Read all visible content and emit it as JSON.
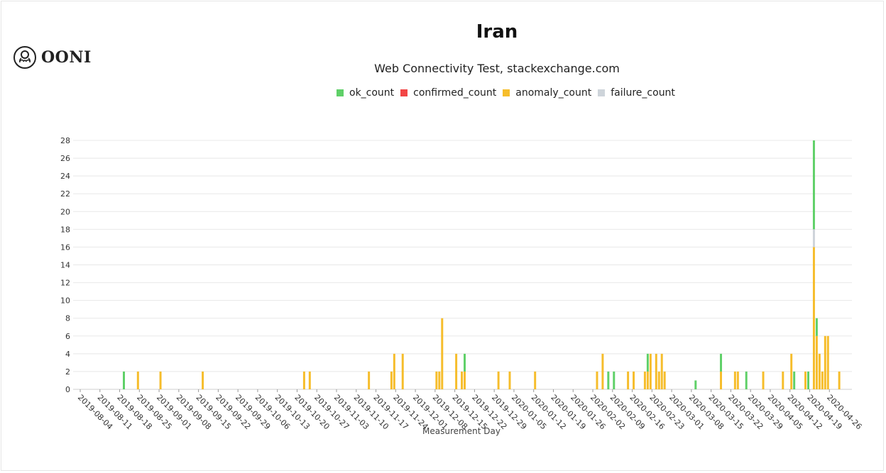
{
  "logo": {
    "text": "OONI",
    "icon": "octopus-icon"
  },
  "chart_data": {
    "type": "bar",
    "title": "Iran",
    "subtitle": "Web Connectivity Test, stackexchange.com",
    "xlabel": "Measurement Day",
    "ylabel": "",
    "ylim": [
      0,
      28
    ],
    "yticks": [
      0,
      2,
      4,
      6,
      8,
      10,
      12,
      14,
      16,
      18,
      20,
      22,
      24,
      26,
      28
    ],
    "xticks": [
      "2019-08-04",
      "2019-08-11",
      "2019-08-18",
      "2019-08-25",
      "2019-09-01",
      "2019-09-08",
      "2019-09-15",
      "2019-09-22",
      "2019-09-29",
      "2019-10-06",
      "2019-10-13",
      "2019-10-20",
      "2019-10-27",
      "2019-11-03",
      "2019-11-10",
      "2019-11-17",
      "2019-11-24",
      "2019-12-01",
      "2019-12-08",
      "2019-12-15",
      "2019-12-22",
      "2019-12-29",
      "2020-01-05",
      "2020-01-12",
      "2020-01-19",
      "2020-01-26",
      "2020-02-02",
      "2020-02-09",
      "2020-02-16",
      "2020-02-23",
      "2020-03-01",
      "2020-03-08",
      "2020-03-15",
      "2020-03-22",
      "2020-03-29",
      "2020-04-05",
      "2020-04-12",
      "2020-04-19",
      "2020-04-26"
    ],
    "start_date": "2019-08-04",
    "num_days": 274,
    "legend": [
      {
        "name": "ok_count",
        "color": "#5fd068"
      },
      {
        "name": "confirmed_count",
        "color": "#f24545"
      },
      {
        "name": "anomaly_count",
        "color": "#f6bd2b"
      },
      {
        "name": "failure_count",
        "color": "#ced4da"
      }
    ],
    "data": [
      {
        "date": "2019-08-19",
        "ok_count": 2,
        "confirmed_count": 0,
        "anomaly_count": 0,
        "failure_count": 0
      },
      {
        "date": "2019-08-24",
        "ok_count": 0,
        "confirmed_count": 0,
        "anomaly_count": 2,
        "failure_count": 0
      },
      {
        "date": "2019-09-01",
        "ok_count": 0,
        "confirmed_count": 0,
        "anomaly_count": 2,
        "failure_count": 0
      },
      {
        "date": "2019-09-16",
        "ok_count": 0,
        "confirmed_count": 0,
        "anomaly_count": 2,
        "failure_count": 0
      },
      {
        "date": "2019-10-22",
        "ok_count": 0,
        "confirmed_count": 0,
        "anomaly_count": 2,
        "failure_count": 0
      },
      {
        "date": "2019-10-24",
        "ok_count": 0,
        "confirmed_count": 0,
        "anomaly_count": 2,
        "failure_count": 0
      },
      {
        "date": "2019-11-14",
        "ok_count": 0,
        "confirmed_count": 0,
        "anomaly_count": 2,
        "failure_count": 0
      },
      {
        "date": "2019-11-22",
        "ok_count": 0,
        "confirmed_count": 0,
        "anomaly_count": 2,
        "failure_count": 0
      },
      {
        "date": "2019-11-23",
        "ok_count": 0,
        "confirmed_count": 0,
        "anomaly_count": 4,
        "failure_count": 0
      },
      {
        "date": "2019-11-26",
        "ok_count": 0,
        "confirmed_count": 0,
        "anomaly_count": 4,
        "failure_count": 0
      },
      {
        "date": "2019-12-08",
        "ok_count": 0,
        "confirmed_count": 0,
        "anomaly_count": 2,
        "failure_count": 0
      },
      {
        "date": "2019-12-09",
        "ok_count": 0,
        "confirmed_count": 0,
        "anomaly_count": 2,
        "failure_count": 0
      },
      {
        "date": "2019-12-10",
        "ok_count": 0,
        "confirmed_count": 0,
        "anomaly_count": 8,
        "failure_count": 0
      },
      {
        "date": "2019-12-15",
        "ok_count": 0,
        "confirmed_count": 0,
        "anomaly_count": 4,
        "failure_count": 0
      },
      {
        "date": "2019-12-17",
        "ok_count": 0,
        "confirmed_count": 0,
        "anomaly_count": 2,
        "failure_count": 0
      },
      {
        "date": "2019-12-18",
        "ok_count": 2,
        "confirmed_count": 0,
        "anomaly_count": 2,
        "failure_count": 0
      },
      {
        "date": "2019-12-30",
        "ok_count": 0,
        "confirmed_count": 0,
        "anomaly_count": 2,
        "failure_count": 0
      },
      {
        "date": "2020-01-03",
        "ok_count": 0,
        "confirmed_count": 0,
        "anomaly_count": 2,
        "failure_count": 0
      },
      {
        "date": "2020-01-12",
        "ok_count": 0,
        "confirmed_count": 0,
        "anomaly_count": 2,
        "failure_count": 0
      },
      {
        "date": "2020-02-03",
        "ok_count": 0,
        "confirmed_count": 0,
        "anomaly_count": 2,
        "failure_count": 0
      },
      {
        "date": "2020-02-05",
        "ok_count": 0,
        "confirmed_count": 0,
        "anomaly_count": 4,
        "failure_count": 0
      },
      {
        "date": "2020-02-07",
        "ok_count": 2,
        "confirmed_count": 0,
        "anomaly_count": 0,
        "failure_count": 0
      },
      {
        "date": "2020-02-09",
        "ok_count": 2,
        "confirmed_count": 0,
        "anomaly_count": 0,
        "failure_count": 0
      },
      {
        "date": "2020-02-14",
        "ok_count": 0,
        "confirmed_count": 0,
        "anomaly_count": 2,
        "failure_count": 0
      },
      {
        "date": "2020-02-16",
        "ok_count": 0,
        "confirmed_count": 0,
        "anomaly_count": 2,
        "failure_count": 0
      },
      {
        "date": "2020-02-20",
        "ok_count": 0,
        "confirmed_count": 0,
        "anomaly_count": 2,
        "failure_count": 0
      },
      {
        "date": "2020-02-21",
        "ok_count": 2,
        "confirmed_count": 0,
        "anomaly_count": 2,
        "failure_count": 0
      },
      {
        "date": "2020-02-22",
        "ok_count": 0,
        "confirmed_count": 0,
        "anomaly_count": 4,
        "failure_count": 0
      },
      {
        "date": "2020-02-24",
        "ok_count": 0,
        "confirmed_count": 0,
        "anomaly_count": 4,
        "failure_count": 0
      },
      {
        "date": "2020-02-25",
        "ok_count": 0,
        "confirmed_count": 0,
        "anomaly_count": 2,
        "failure_count": 0
      },
      {
        "date": "2020-02-26",
        "ok_count": 0,
        "confirmed_count": 0,
        "anomaly_count": 4,
        "failure_count": 0
      },
      {
        "date": "2020-02-27",
        "ok_count": 0,
        "confirmed_count": 0,
        "anomaly_count": 2,
        "failure_count": 0
      },
      {
        "date": "2020-03-09",
        "ok_count": 1,
        "confirmed_count": 0,
        "anomaly_count": 0,
        "failure_count": 0
      },
      {
        "date": "2020-03-18",
        "ok_count": 2,
        "confirmed_count": 0,
        "anomaly_count": 2,
        "failure_count": 0
      },
      {
        "date": "2020-03-23",
        "ok_count": 0,
        "confirmed_count": 0,
        "anomaly_count": 2,
        "failure_count": 0
      },
      {
        "date": "2020-03-24",
        "ok_count": 0,
        "confirmed_count": 0,
        "anomaly_count": 2,
        "failure_count": 0
      },
      {
        "date": "2020-03-27",
        "ok_count": 2,
        "confirmed_count": 0,
        "anomaly_count": 0,
        "failure_count": 0
      },
      {
        "date": "2020-04-02",
        "ok_count": 0,
        "confirmed_count": 0,
        "anomaly_count": 2,
        "failure_count": 0
      },
      {
        "date": "2020-04-09",
        "ok_count": 0,
        "confirmed_count": 0,
        "anomaly_count": 2,
        "failure_count": 0
      },
      {
        "date": "2020-04-12",
        "ok_count": 0,
        "confirmed_count": 0,
        "anomaly_count": 4,
        "failure_count": 0
      },
      {
        "date": "2020-04-13",
        "ok_count": 2,
        "confirmed_count": 0,
        "anomaly_count": 0,
        "failure_count": 0
      },
      {
        "date": "2020-04-17",
        "ok_count": 0,
        "confirmed_count": 0,
        "anomaly_count": 2,
        "failure_count": 0
      },
      {
        "date": "2020-04-18",
        "ok_count": 2,
        "confirmed_count": 0,
        "anomaly_count": 0,
        "failure_count": 0
      },
      {
        "date": "2020-04-20",
        "ok_count": 10,
        "confirmed_count": 0,
        "anomaly_count": 16,
        "failure_count": 2
      },
      {
        "date": "2020-04-21",
        "ok_count": 2,
        "confirmed_count": 0,
        "anomaly_count": 6,
        "failure_count": 0
      },
      {
        "date": "2020-04-22",
        "ok_count": 0,
        "confirmed_count": 0,
        "anomaly_count": 4,
        "failure_count": 0
      },
      {
        "date": "2020-04-23",
        "ok_count": 0,
        "confirmed_count": 0,
        "anomaly_count": 2,
        "failure_count": 0
      },
      {
        "date": "2020-04-24",
        "ok_count": 0,
        "confirmed_count": 0,
        "anomaly_count": 6,
        "failure_count": 0
      },
      {
        "date": "2020-04-25",
        "ok_count": 0,
        "confirmed_count": 0,
        "anomaly_count": 6,
        "failure_count": 0
      },
      {
        "date": "2020-04-29",
        "ok_count": 0,
        "confirmed_count": 0,
        "anomaly_count": 2,
        "failure_count": 0
      }
    ]
  }
}
